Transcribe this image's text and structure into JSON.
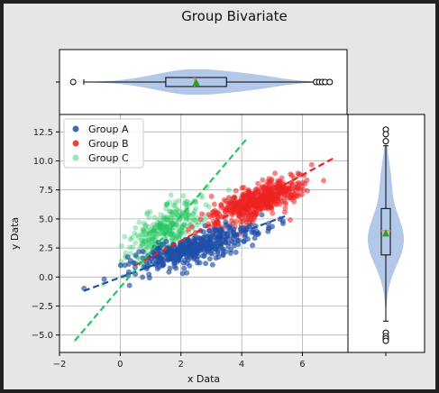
{
  "chart_data": {
    "type": "scatter",
    "title": "Group Bivariate",
    "xlabel": "x Data",
    "ylabel": "y Data",
    "xlim": [
      -2,
      7.5
    ],
    "ylim": [
      -6.5,
      14
    ],
    "xticks": [
      -2,
      0,
      2,
      4,
      6
    ],
    "xtick_labels": [
      "−2",
      "0",
      "2",
      "4",
      "6"
    ],
    "yticks": [
      -5,
      -2.5,
      0,
      2.5,
      5,
      7.5,
      10,
      12.5
    ],
    "ytick_labels": [
      "−5.0",
      "−2.5",
      "0.0",
      "2.5",
      "5.0",
      "7.5",
      "10.0",
      "12.5"
    ],
    "grid": true,
    "legend_placement": "top-left",
    "series": [
      {
        "name": "Group A",
        "color": "#1f4fa8",
        "center": [
          2.5,
          2.5
        ],
        "trend_line": {
          "x": [
            -1.2,
            5.5
          ],
          "y": [
            -1.2,
            5.3
          ]
        }
      },
      {
        "name": "Group B",
        "color": "#ee2222",
        "center": [
          4.5,
          6.5
        ],
        "trend_line": {
          "x": [
            0.5,
            7.0
          ],
          "y": [
            1.0,
            10.2
          ]
        }
      },
      {
        "name": "Group C",
        "color": "#22c55e",
        "center": [
          1.5,
          4.0
        ],
        "trend_line": {
          "x": [
            -1.5,
            4.2
          ],
          "y": [
            -5.5,
            12.0
          ]
        }
      }
    ],
    "x_marginal": {
      "type": "violin+box",
      "color": "#9ab5e0",
      "median": 2.45,
      "mean": 2.5,
      "q1": 1.5,
      "q3": 3.5,
      "whisker_low": -1.2,
      "whisker_high": 6.4,
      "outliers": [
        -1.55,
        6.45,
        6.55,
        6.65,
        6.75,
        6.9
      ]
    },
    "y_marginal": {
      "type": "violin+box",
      "color": "#9ab5e0",
      "median": 4.0,
      "mean": 3.8,
      "q1": 1.9,
      "q3": 5.9,
      "whisker_low": -3.8,
      "whisker_high": 11.3,
      "outliers": [
        12.7,
        12.3,
        11.7,
        -4.8,
        -5.1,
        -5.3,
        -5.5
      ]
    }
  }
}
